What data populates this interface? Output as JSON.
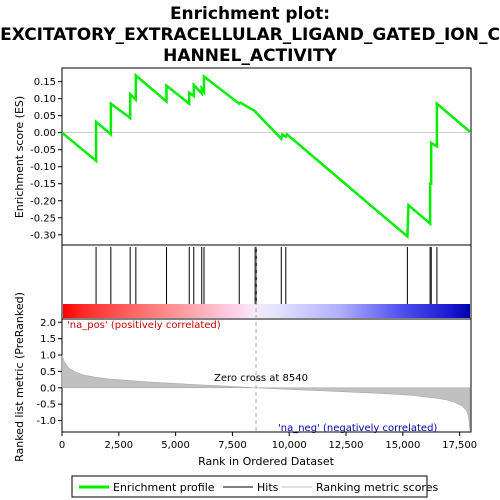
{
  "title_lines": [
    "Enrichment plot:",
    "EXCITATORY_EXTRACELLULAR_LIGAND_GATED_ION_C",
    "HANNEL_ACTIVITY"
  ],
  "colors": {
    "enrichment_line": "#00ee00",
    "hits": "#000000",
    "ranking_fill": "#c0c0c0",
    "pos_label": "#cc0000",
    "neg_label": "#0000aa",
    "zero_cross_line": "#aaaaaa"
  },
  "annotations": {
    "pos_label": "'na_pos' (positively correlated)",
    "neg_label": "'na_neg' (negatively correlated)",
    "zero_cross": "Zero cross at 8540"
  },
  "legend": {
    "items": [
      {
        "label": "Enrichment profile",
        "style": "green-line"
      },
      {
        "label": "Hits",
        "style": "black-line"
      },
      {
        "label": "Ranking metric scores",
        "style": "gray-line"
      }
    ]
  },
  "chart_data": [
    {
      "type": "line",
      "name": "enrichment-profile",
      "ylabel": "Enrichment score (ES)",
      "xlim": [
        0,
        18000
      ],
      "ylim": [
        -0.33,
        0.19
      ],
      "y_ticks": [
        "0.15",
        "0.10",
        "0.05",
        "0.00",
        "-0.05",
        "-0.10",
        "-0.15",
        "-0.20",
        "-0.25",
        "-0.30"
      ],
      "y_tick_values": [
        0.15,
        0.1,
        0.05,
        0.0,
        -0.05,
        -0.1,
        -0.15,
        -0.2,
        -0.25,
        -0.3
      ],
      "x": [
        0,
        1500,
        1500,
        2150,
        2150,
        3000,
        3000,
        3250,
        3250,
        4600,
        4600,
        5600,
        5600,
        5800,
        5800,
        6150,
        6150,
        6250,
        6250,
        7800,
        7850,
        8500,
        8550,
        9650,
        9700,
        9850,
        9900,
        15200,
        15250,
        16200,
        16200,
        16250,
        16250,
        16500,
        16500,
        17950
      ],
      "y": [
        0.0,
        -0.083,
        0.032,
        -0.005,
        0.085,
        0.043,
        0.113,
        0.097,
        0.168,
        0.092,
        0.138,
        0.085,
        0.117,
        0.108,
        0.14,
        0.115,
        0.13,
        0.12,
        0.165,
        0.085,
        0.088,
        0.063,
        0.058,
        -0.018,
        -0.005,
        -0.012,
        -0.005,
        -0.305,
        -0.213,
        -0.267,
        -0.15,
        -0.15,
        -0.03,
        -0.04,
        0.085,
        0.003
      ]
    },
    {
      "type": "scatter",
      "name": "hits",
      "x": [
        1500,
        2150,
        3000,
        3250,
        4600,
        5600,
        5800,
        6150,
        6250,
        7800,
        8500,
        8550,
        9650,
        9850,
        15200,
        16200,
        16250,
        16500
      ]
    },
    {
      "type": "area",
      "name": "ranking-metric",
      "xlabel": "Rank in Ordered Dataset",
      "ylabel": "Ranked list metric (PreRanked)",
      "xlim": [
        0,
        18000
      ],
      "ylim": [
        -1.35,
        2.1
      ],
      "x_ticks": [
        "0",
        "2,500",
        "5,000",
        "7,500",
        "10,000",
        "12,500",
        "15,000",
        "17,500"
      ],
      "x_tick_values": [
        0,
        2500,
        5000,
        7500,
        10000,
        12500,
        15000,
        17500
      ],
      "y_ticks": [
        "2.0",
        "1.5",
        "1.0",
        "0.5",
        "0.0",
        "-0.5",
        "-1.0"
      ],
      "y_tick_values": [
        2.0,
        1.5,
        1.0,
        0.5,
        0.0,
        -0.5,
        -1.0
      ],
      "x": [
        0,
        100,
        300,
        600,
        1000,
        1500,
        2000,
        3000,
        4000,
        5000,
        6000,
        7000,
        8000,
        8540,
        9000,
        10000,
        11000,
        12000,
        13000,
        14000,
        15000,
        15500,
        16000,
        16500,
        17000,
        17300,
        17600,
        17800,
        17900,
        17950
      ],
      "y": [
        1.0,
        0.8,
        0.6,
        0.48,
        0.38,
        0.32,
        0.27,
        0.22,
        0.17,
        0.13,
        0.09,
        0.06,
        0.02,
        0.0,
        -0.02,
        -0.05,
        -0.08,
        -0.11,
        -0.14,
        -0.17,
        -0.21,
        -0.24,
        -0.28,
        -0.32,
        -0.38,
        -0.45,
        -0.55,
        -0.7,
        -0.9,
        -1.3
      ]
    }
  ]
}
